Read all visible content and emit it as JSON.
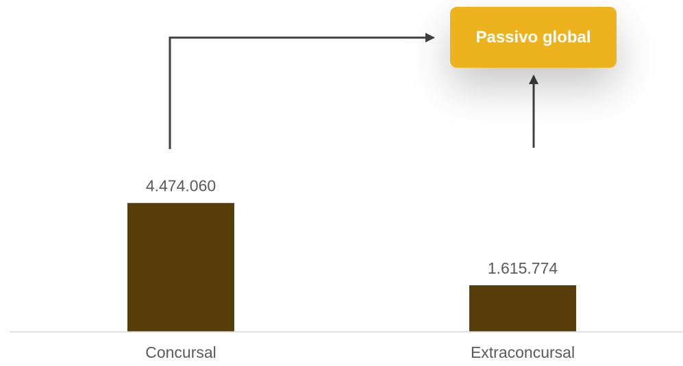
{
  "chart_data": {
    "type": "bar",
    "categories": [
      "Concursal",
      "Extraconcursal"
    ],
    "values": [
      4474060,
      1615774
    ],
    "value_labels": [
      "4.474.060",
      "1.615.774"
    ],
    "ylim": [
      0,
      11500000
    ],
    "grid": false,
    "annotation": {
      "label": "Passivo global",
      "connects": [
        "Concursal",
        "Extraconcursal"
      ]
    }
  },
  "colors": {
    "bar": "#573d0a",
    "callout": "#ecb31e",
    "arrow": "#404040",
    "text": "#595959",
    "axis": "#d9d9d9"
  }
}
